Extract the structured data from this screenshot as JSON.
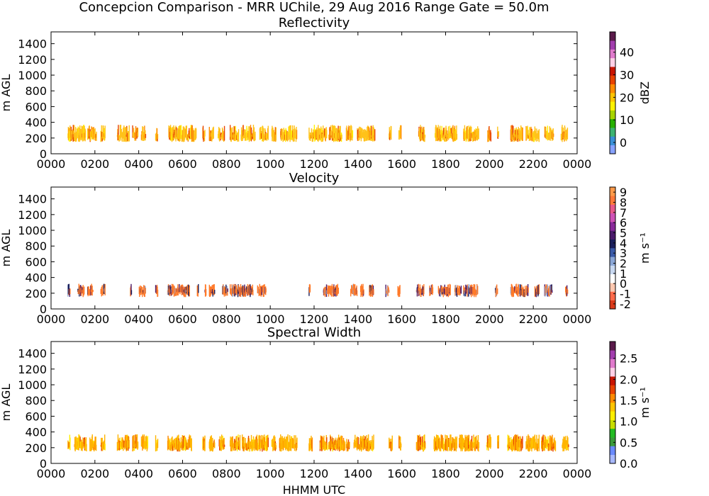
{
  "figure": {
    "suptitle": "Concepcion Comparison - MRR UChile, 29 Aug 2016 Range Gate = 50.0m",
    "xlabel": "HHMM UTC"
  },
  "chart_data": [
    {
      "type": "heatmap",
      "title": "Reflectivity",
      "ylabel": "m AGL",
      "xlim": [
        0,
        2400
      ],
      "ylim": [
        0,
        1550
      ],
      "x_ticks": [
        "0000",
        "0200",
        "0400",
        "0600",
        "0800",
        "1000",
        "1200",
        "1400",
        "1600",
        "1800",
        "2000",
        "2200",
        "0000"
      ],
      "y_ticks": [
        "0",
        "200",
        "400",
        "600",
        "800",
        "1000",
        "1200",
        "1400"
      ],
      "colorbar": {
        "label": "dBZ",
        "range": [
          -5,
          49
        ],
        "ticks": [
          "0",
          "10",
          "20",
          "30",
          "40"
        ],
        "tick_values": [
          0,
          10,
          20,
          30,
          40
        ],
        "colors": [
          "#87a2ff",
          "#3a8fd6",
          "#3cb371",
          "#26b000",
          "#a8d400",
          "#fff200",
          "#ffc400",
          "#ff8a00",
          "#e84200",
          "#c81400",
          "#ffd0e6",
          "#e07acc",
          "#a23dae",
          "#5a1a4a"
        ]
      },
      "dominant_color": "#ffc21a",
      "layer_height_m": [
        150,
        350
      ],
      "segments": [
        [
          75,
          155
        ],
        [
          165,
          205
        ],
        [
          225,
          245
        ],
        [
          300,
          355
        ],
        [
          370,
          395
        ],
        [
          410,
          430
        ],
        [
          475,
          485
        ],
        [
          535,
          660
        ],
        [
          690,
          700
        ],
        [
          720,
          740
        ],
        [
          760,
          790
        ],
        [
          815,
          855
        ],
        [
          865,
          930
        ],
        [
          950,
          990
        ],
        [
          1005,
          1025
        ],
        [
          1045,
          1120
        ],
        [
          1175,
          1255
        ],
        [
          1265,
          1325
        ],
        [
          1345,
          1375
        ],
        [
          1395,
          1475
        ],
        [
          1540,
          1550
        ],
        [
          1585,
          1595
        ],
        [
          1675,
          1705
        ],
        [
          1750,
          1850
        ],
        [
          1880,
          1950
        ],
        [
          1990,
          2005
        ],
        [
          2035,
          2040
        ],
        [
          2095,
          2150
        ],
        [
          2165,
          2225
        ],
        [
          2250,
          2290
        ],
        [
          2325,
          2355
        ]
      ]
    },
    {
      "type": "heatmap",
      "title": "Velocity",
      "ylabel": "m AGL",
      "xlim": [
        0,
        2400
      ],
      "ylim": [
        0,
        1550
      ],
      "x_ticks": [
        "0000",
        "0200",
        "0400",
        "0600",
        "0800",
        "1000",
        "1200",
        "1400",
        "1600",
        "1800",
        "2000",
        "2200",
        "0000"
      ],
      "y_ticks": [
        "0",
        "200",
        "400",
        "600",
        "800",
        "1000",
        "1200",
        "1400"
      ],
      "colorbar": {
        "label": "m s⁻¹",
        "range": [
          -2.5,
          9.5
        ],
        "ticks": [
          "-2",
          "-1",
          "0",
          "1",
          "2",
          "3",
          "4",
          "5",
          "6",
          "7",
          "8",
          "9"
        ],
        "tick_values": [
          -2,
          -1,
          0,
          1,
          2,
          3,
          4,
          5,
          6,
          7,
          8,
          9
        ],
        "colors": [
          "#d93a1a",
          "#ff6a4a",
          "#ffc8b0",
          "#ffffff",
          "#c8d8f0",
          "#8aa6d6",
          "#3a5aa8",
          "#1a1e5a",
          "#4a1a6a",
          "#8a2a9a",
          "#cf52b6",
          "#e85a8a",
          "#ff7a3a",
          "#ff9a4a"
        ]
      },
      "dominant_color": "#ff7a2a",
      "layer_height_m": [
        150,
        300
      ],
      "segments": [
        [
          75,
          85
        ],
        [
          120,
          150
        ],
        [
          165,
          190
        ],
        [
          225,
          245
        ],
        [
          360,
          365
        ],
        [
          400,
          430
        ],
        [
          475,
          485
        ],
        [
          530,
          630
        ],
        [
          665,
          670
        ],
        [
          700,
          705
        ],
        [
          720,
          745
        ],
        [
          780,
          805
        ],
        [
          815,
          920
        ],
        [
          940,
          980
        ],
        [
          1175,
          1180
        ],
        [
          1240,
          1310
        ],
        [
          1365,
          1395
        ],
        [
          1410,
          1425
        ],
        [
          1450,
          1470
        ],
        [
          1525,
          1540
        ],
        [
          1580,
          1590
        ],
        [
          1665,
          1700
        ],
        [
          1725,
          1740
        ],
        [
          1765,
          1820
        ],
        [
          1840,
          1870
        ],
        [
          1880,
          1945
        ],
        [
          2025,
          2035
        ],
        [
          2095,
          2175
        ],
        [
          2205,
          2225
        ],
        [
          2250,
          2285
        ],
        [
          2345,
          2355
        ]
      ]
    },
    {
      "type": "heatmap",
      "title": "Spectral Width",
      "ylabel": "m AGL",
      "xlim": [
        0,
        2400
      ],
      "ylim": [
        0,
        1550
      ],
      "x_ticks": [
        "0000",
        "0200",
        "0400",
        "0600",
        "0800",
        "1000",
        "1200",
        "1400",
        "1600",
        "1800",
        "2000",
        "2200",
        "0000"
      ],
      "y_ticks": [
        "0",
        "200",
        "400",
        "600",
        "800",
        "1000",
        "1200",
        "1400"
      ],
      "colorbar": {
        "label": "m s⁻¹",
        "range": [
          0,
          2.9
        ],
        "ticks": [
          "0.0",
          "0.5",
          "1.0",
          "1.5",
          "2.0",
          "2.5"
        ],
        "tick_values": [
          0,
          0.5,
          1.0,
          1.5,
          2.0,
          2.5
        ],
        "colors": [
          "#a8b8ff",
          "#6a8aff",
          "#3a9a3a",
          "#22bb22",
          "#c8dd00",
          "#ffee00",
          "#ffc400",
          "#ff8a00",
          "#e84200",
          "#c81400",
          "#ffd0e6",
          "#e07acc",
          "#a23dae",
          "#5a1a4a"
        ]
      },
      "dominant_color": "#ffb400",
      "layer_height_m": [
        150,
        350
      ],
      "segments": [
        [
          75,
          85
        ],
        [
          105,
          160
        ],
        [
          175,
          205
        ],
        [
          225,
          245
        ],
        [
          300,
          355
        ],
        [
          370,
          395
        ],
        [
          410,
          440
        ],
        [
          475,
          485
        ],
        [
          530,
          640
        ],
        [
          690,
          700
        ],
        [
          720,
          745
        ],
        [
          765,
          790
        ],
        [
          815,
          860
        ],
        [
          870,
          990
        ],
        [
          1005,
          1025
        ],
        [
          1040,
          1120
        ],
        [
          1175,
          1190
        ],
        [
          1225,
          1260
        ],
        [
          1265,
          1340
        ],
        [
          1345,
          1360
        ],
        [
          1380,
          1470
        ],
        [
          1540,
          1555
        ],
        [
          1585,
          1595
        ],
        [
          1665,
          1705
        ],
        [
          1745,
          1850
        ],
        [
          1860,
          1950
        ],
        [
          1985,
          2005
        ],
        [
          2035,
          2040
        ],
        [
          2080,
          2150
        ],
        [
          2165,
          2225
        ],
        [
          2235,
          2300
        ],
        [
          2330,
          2360
        ]
      ]
    }
  ]
}
